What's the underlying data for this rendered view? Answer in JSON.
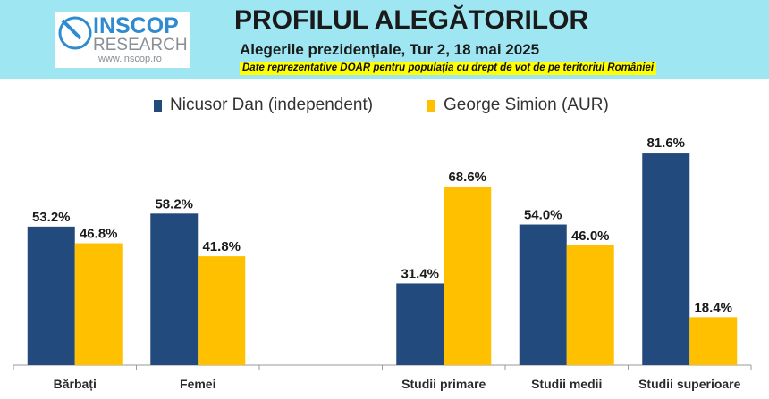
{
  "header": {
    "logo": {
      "line1": "INSCOP",
      "line2": "RESEARCH",
      "line3": "www.inscop.ro"
    },
    "title": "PROFILUL ALEGĂTORILOR",
    "subtitle": "Alegerile prezidențiale, Tur 2, 18 mai 2025",
    "disclaimer": "Date reprezentative DOAR pentru populația cu drept de vot de pe teritoriul României"
  },
  "colors": {
    "header_bg": "#9ee6f2",
    "series1": "#234a7c",
    "series2": "#ffc000",
    "highlight": "#ffff00"
  },
  "chart_data": {
    "type": "bar",
    "categories": [
      "Bărbați",
      "Femei",
      "",
      "Studii primare",
      "Studii medii",
      "Studii superioare"
    ],
    "series": [
      {
        "name": "Nicusor Dan (independent)",
        "values": [
          53.2,
          58.2,
          null,
          31.4,
          54.0,
          81.6
        ],
        "labels": [
          "53.2%",
          "58.2%",
          "",
          "31.4%",
          "54.0%",
          "81.6%"
        ]
      },
      {
        "name": "George Simion (AUR)",
        "values": [
          46.8,
          41.8,
          null,
          68.6,
          46.0,
          18.4
        ],
        "labels": [
          "46.8%",
          "41.8%",
          "",
          "68.6%",
          "46.0%",
          "18.4%"
        ]
      }
    ],
    "ylim": [
      0,
      100
    ],
    "legend": "top",
    "grid": false
  }
}
